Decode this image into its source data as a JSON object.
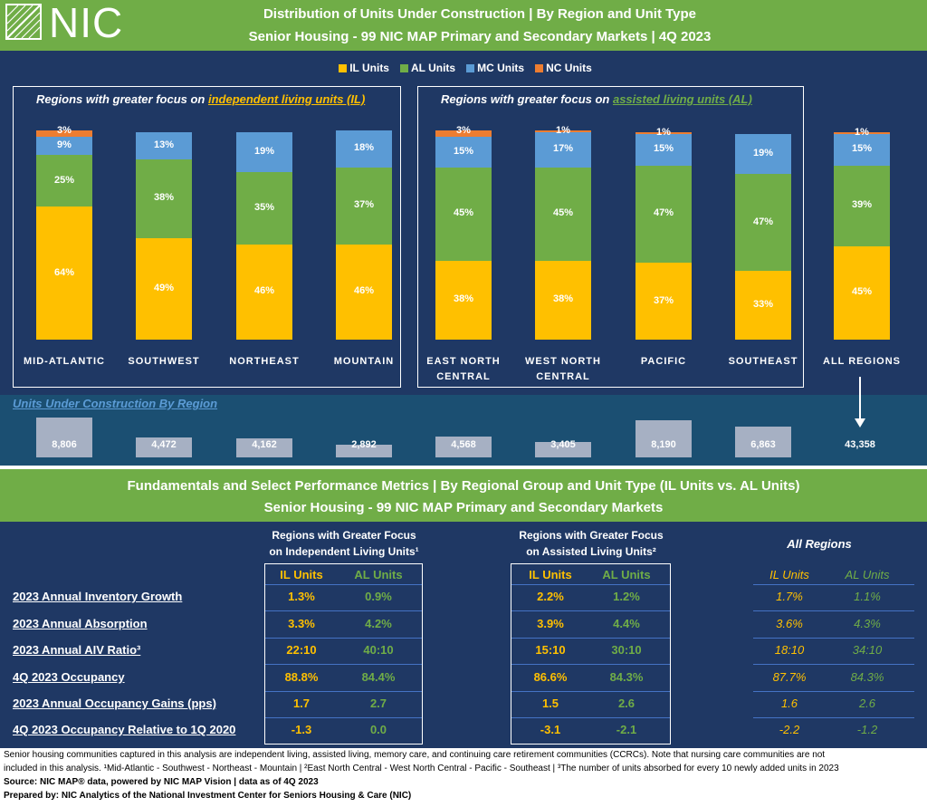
{
  "header": {
    "logo_text": "NIC",
    "title_line1": "Distribution of Units Under Construction | By Region and Unit Type",
    "title_line2": "Senior Housing - 99 NIC MAP Primary and Secondary Markets | 4Q 2023"
  },
  "legend": [
    {
      "label": "IL Units",
      "color": "#ffc000"
    },
    {
      "label": "AL Units",
      "color": "#70ad47"
    },
    {
      "label": "MC Units",
      "color": "#5b9bd5"
    },
    {
      "label": "NC Units",
      "color": "#ed7d31"
    }
  ],
  "groups": {
    "il_prefix": "Regions with greater focus on ",
    "il_focus": "independent living units (IL)",
    "al_prefix": "Regions with greater focus on ",
    "al_focus": "assisted living units (AL)"
  },
  "chart_data": {
    "type": "bar",
    "stacked": true,
    "percent": true,
    "categories": [
      "MID-ATLANTIC",
      "SOUTHWEST",
      "NORTHEAST",
      "MOUNTAIN",
      "EAST NORTH CENTRAL",
      "WEST NORTH CENTRAL",
      "PACIFIC",
      "SOUTHEAST",
      "ALL REGIONS"
    ],
    "series": [
      {
        "name": "IL Units",
        "values": [
          64,
          49,
          46,
          46,
          38,
          38,
          37,
          33,
          45
        ],
        "labels": [
          "64%",
          "49%",
          "46%",
          "46%",
          "38%",
          "38%",
          "37%",
          "33%",
          "45%"
        ]
      },
      {
        "name": "AL Units",
        "values": [
          25,
          38,
          35,
          37,
          45,
          45,
          47,
          47,
          39
        ],
        "labels": [
          "25%",
          "38%",
          "35%",
          "37%",
          "45%",
          "45%",
          "47%",
          "47%",
          "39%"
        ]
      },
      {
        "name": "MC Units",
        "values": [
          9,
          13,
          19,
          18,
          15,
          17,
          15,
          19,
          15
        ],
        "labels": [
          "9%",
          "13%",
          "19%",
          "18%",
          "15%",
          "17%",
          "15%",
          "19%",
          "15%"
        ]
      },
      {
        "name": "NC Units",
        "values": [
          3,
          0,
          0,
          0,
          3,
          1,
          1,
          0,
          1
        ],
        "labels": [
          "3%",
          "",
          "",
          "",
          "3%",
          "1%",
          "1%",
          "",
          "1%"
        ]
      }
    ],
    "units_title": "Units Under Construction By Region",
    "units_by_region": [
      8806,
      4472,
      4162,
      2892,
      4568,
      3405,
      8190,
      6863
    ],
    "units_labels": [
      "8,806",
      "4,472",
      "4,162",
      "2,892",
      "4,568",
      "3,405",
      "8,190",
      "6,863"
    ],
    "units_total": "43,358"
  },
  "section2": {
    "title_line1": "Fundamentals and Select Performance Metrics | By Regional Group and Unit Type (IL Units vs. AL Units)",
    "title_line2": "Senior Housing - 99 NIC MAP Primary and Secondary Markets",
    "group1_title": [
      "Regions with Greater Focus",
      "on Independent Living Units¹"
    ],
    "group2_title": [
      "Regions with Greater Focus",
      "on Assisted Living Units²"
    ],
    "group3_title": "All Regions",
    "col_il": "IL Units",
    "col_al": "AL Units",
    "metrics": [
      {
        "label": "2023 Annual Inventory Growth",
        "g1": [
          "1.3%",
          "0.9%"
        ],
        "g2": [
          "2.2%",
          "1.2%"
        ],
        "all": [
          "1.7%",
          "1.1%"
        ]
      },
      {
        "label": "2023 Annual Absorption",
        "g1": [
          "3.3%",
          "4.2%"
        ],
        "g2": [
          "3.9%",
          "4.4%"
        ],
        "all": [
          "3.6%",
          "4.3%"
        ]
      },
      {
        "label": "2023 Annual AIV Ratio³",
        "g1": [
          "22:10",
          "40:10"
        ],
        "g2": [
          "15:10",
          "30:10"
        ],
        "all": [
          "18:10",
          "34:10"
        ]
      },
      {
        "label": "4Q 2023 Occupancy",
        "g1": [
          "88.8%",
          "84.4%"
        ],
        "g2": [
          "86.6%",
          "84.3%"
        ],
        "all": [
          "87.7%",
          "84.3%"
        ]
      },
      {
        "label": "2023 Annual Occupancy Gains (pps)",
        "g1": [
          "1.7",
          "2.7"
        ],
        "g2": [
          "1.5",
          "2.6"
        ],
        "all": [
          "1.6",
          "2.6"
        ]
      },
      {
        "label": "4Q 2023 Occupancy Relative to 1Q 2020",
        "g1": [
          "-1.3",
          "0.0"
        ],
        "g2": [
          "-3.1",
          "-2.1"
        ],
        "all": [
          "-2.2",
          "-1.2"
        ]
      }
    ]
  },
  "footer": {
    "note1": "Senior housing communities captured in this analysis are independent living, assisted living, memory care, and continuing care retirement communities (CCRCs). Note that nursing care communities are not",
    "note2": "included in this analysis. ¹Mid-Atlantic - Southwest - Northeast - Mountain | ²East North Central - West North Central - Pacific - Southeast | ³The number of units absorbed for every 10 newly added units in 2023",
    "source": "Source: NIC MAP® data, powered by NIC MAP Vision | data as of 4Q 2023",
    "prepared": "Prepared by: NIC Analytics of the National Investment Center for Seniors Housing & Care (NIC)"
  }
}
